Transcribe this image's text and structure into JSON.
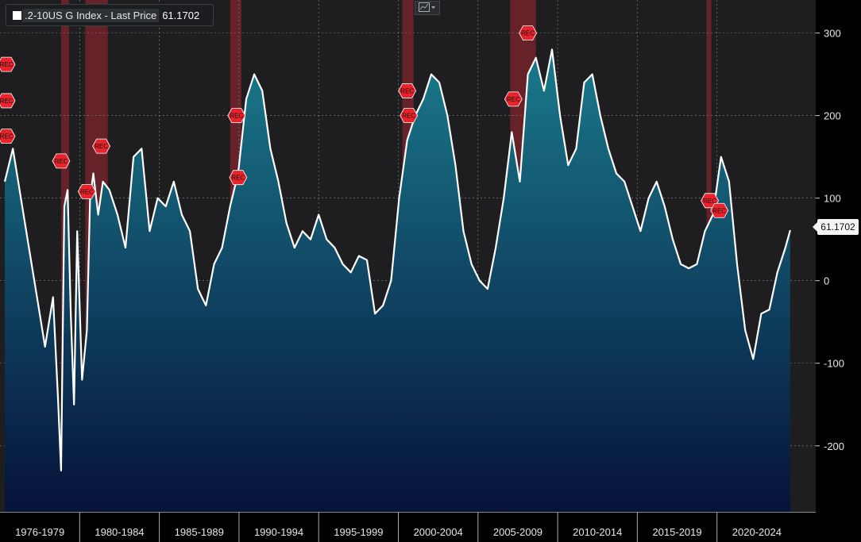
{
  "legend": {
    "series_name": ".2-10US G Index - Last Price",
    "last_value": "61.1702"
  },
  "colors": {
    "line": "#ffffff",
    "area_top": "#1a7a8c",
    "area_bottom": "#06123a",
    "background": "#1e1e20",
    "recession_band": "#a02630",
    "recession_marker": "#e8232b",
    "dot": "#f0a030"
  },
  "toolbar": {
    "chart_type_icon": "line-chart-icon"
  },
  "chart_data": {
    "type": "area",
    "title": "",
    "xlabel": "",
    "ylabel": "",
    "ylim": [
      -280,
      340
    ],
    "xlim": [
      1976.4,
      2025.7
    ],
    "grid": true,
    "y_ticks": [
      300,
      200,
      100,
      0,
      -100,
      -200
    ],
    "x_tick_labels": [
      "1976-1979",
      "1980-1984",
      "1985-1989",
      "1990-1994",
      "1995-1999",
      "2000-2004",
      "2005-2009",
      "2010-2014",
      "2015-2019",
      "2020-2024"
    ],
    "last_price_label": "61.1702",
    "series": [
      {
        "name": ".2-10US G Index - Last Price",
        "x": [
          1976.5,
          1977.0,
          1977.5,
          1978.0,
          1978.5,
          1979.0,
          1979.5,
          1979.8,
          1980.0,
          1980.2,
          1980.4,
          1980.6,
          1980.8,
          1981.0,
          1981.3,
          1981.6,
          1981.8,
          1982.0,
          1982.3,
          1982.6,
          1983.0,
          1983.5,
          1984.0,
          1984.5,
          1985.0,
          1985.5,
          1986.0,
          1986.5,
          1987.0,
          1987.5,
          1988.0,
          1988.5,
          1989.0,
          1989.5,
          1990.0,
          1990.5,
          1991.0,
          1991.5,
          1992.0,
          1992.5,
          1993.0,
          1993.5,
          1994.0,
          1994.5,
          1995.0,
          1995.5,
          1996.0,
          1996.5,
          1997.0,
          1997.5,
          1998.0,
          1998.5,
          1999.0,
          1999.5,
          2000.0,
          2000.5,
          2001.0,
          2001.5,
          2002.0,
          2002.5,
          2003.0,
          2003.5,
          2004.0,
          2004.5,
          2005.0,
          2005.5,
          2006.0,
          2006.5,
          2007.0,
          2007.5,
          2008.0,
          2008.5,
          2009.0,
          2009.5,
          2010.0,
          2010.5,
          2011.0,
          2011.5,
          2012.0,
          2012.5,
          2013.0,
          2013.5,
          2014.0,
          2014.5,
          2015.0,
          2015.5,
          2016.0,
          2016.5,
          2017.0,
          2017.5,
          2018.0,
          2018.5,
          2019.0,
          2019.5,
          2020.0,
          2020.5,
          2021.0,
          2021.5,
          2022.0,
          2022.5,
          2023.0,
          2023.5,
          2024.0,
          2024.5,
          2025.0,
          2025.3
        ],
        "values": [
          120,
          160,
          100,
          40,
          -20,
          -80,
          -20,
          -140,
          -230,
          90,
          110,
          -40,
          -150,
          60,
          -120,
          -60,
          100,
          130,
          80,
          120,
          110,
          80,
          40,
          150,
          160,
          60,
          100,
          90,
          120,
          80,
          60,
          -10,
          -30,
          20,
          40,
          90,
          130,
          220,
          250,
          230,
          160,
          120,
          70,
          40,
          60,
          50,
          80,
          50,
          40,
          20,
          10,
          30,
          25,
          -40,
          -30,
          0,
          100,
          170,
          200,
          220,
          250,
          240,
          200,
          140,
          60,
          20,
          0,
          -10,
          40,
          100,
          180,
          120,
          250,
          270,
          230,
          280,
          200,
          140,
          160,
          240,
          250,
          200,
          160,
          130,
          120,
          90,
          60,
          100,
          120,
          90,
          50,
          20,
          15,
          20,
          60,
          80,
          150,
          120,
          20,
          -60,
          -95,
          -40,
          -35,
          10,
          40,
          61.17
        ]
      }
    ],
    "recession_periods": [
      [
        1980.0,
        1980.5
      ],
      [
        1981.5,
        1982.9
      ],
      [
        1990.5,
        1991.2
      ],
      [
        2001.2,
        2001.9
      ],
      [
        2007.9,
        2009.5
      ],
      [
        2020.1,
        2020.4
      ]
    ],
    "recession_marker_label": "REC",
    "recession_markers": [
      {
        "x": 1976.6,
        "y": 262
      },
      {
        "x": 1976.6,
        "y": 218
      },
      {
        "x": 1976.6,
        "y": 175
      },
      {
        "x": 1980.0,
        "y": 145
      },
      {
        "x": 1981.6,
        "y": 108
      },
      {
        "x": 1982.5,
        "y": 163
      },
      {
        "x": 1990.9,
        "y": 200
      },
      {
        "x": 1991.0,
        "y": 125
      },
      {
        "x": 2001.5,
        "y": 230
      },
      {
        "x": 2001.6,
        "y": 200
      },
      {
        "x": 2009.0,
        "y": 300
      },
      {
        "x": 2008.1,
        "y": 220
      },
      {
        "x": 2020.3,
        "y": 97
      },
      {
        "x": 2020.9,
        "y": 85
      }
    ]
  }
}
